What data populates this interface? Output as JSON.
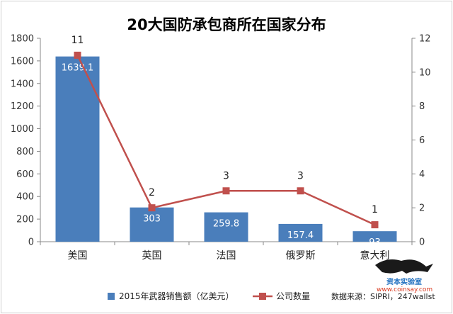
{
  "chart_data": {
    "type": "bar",
    "title": "20大国防承包商所在国家分布",
    "categories": [
      "美国",
      "英国",
      "法国",
      "俄罗斯",
      "意大利"
    ],
    "series": [
      {
        "name": "2015年武器销售额（亿美元）",
        "type": "bar",
        "axis": "left",
        "values": [
          1639.1,
          303,
          259.8,
          157.4,
          93
        ],
        "labels": [
          "1639.1",
          "303",
          "259.8",
          "157.4",
          "93"
        ]
      },
      {
        "name": "公司数量",
        "type": "line",
        "axis": "right",
        "values": [
          11,
          2,
          3,
          3,
          1
        ],
        "labels": [
          "11",
          "2",
          "3",
          "3",
          "1"
        ]
      }
    ],
    "y_left": {
      "min": 0,
      "max": 1800,
      "ticks": [
        "0",
        "200",
        "400",
        "600",
        "800",
        "1000",
        "1200",
        "1400",
        "1600",
        "1800"
      ]
    },
    "y_right": {
      "min": 0,
      "max": 12,
      "ticks": [
        "0",
        "2",
        "4",
        "6",
        "8",
        "10",
        "12"
      ]
    },
    "grid": false,
    "legend_position": "bottom",
    "colors": {
      "bar": "#4a7ebb",
      "line": "#c0504d",
      "axis": "#888888"
    }
  },
  "source_note": "数据来源：SIPRI，247wallst",
  "watermark": {
    "title": "资本实验室",
    "url": "www.coinsay.com"
  }
}
